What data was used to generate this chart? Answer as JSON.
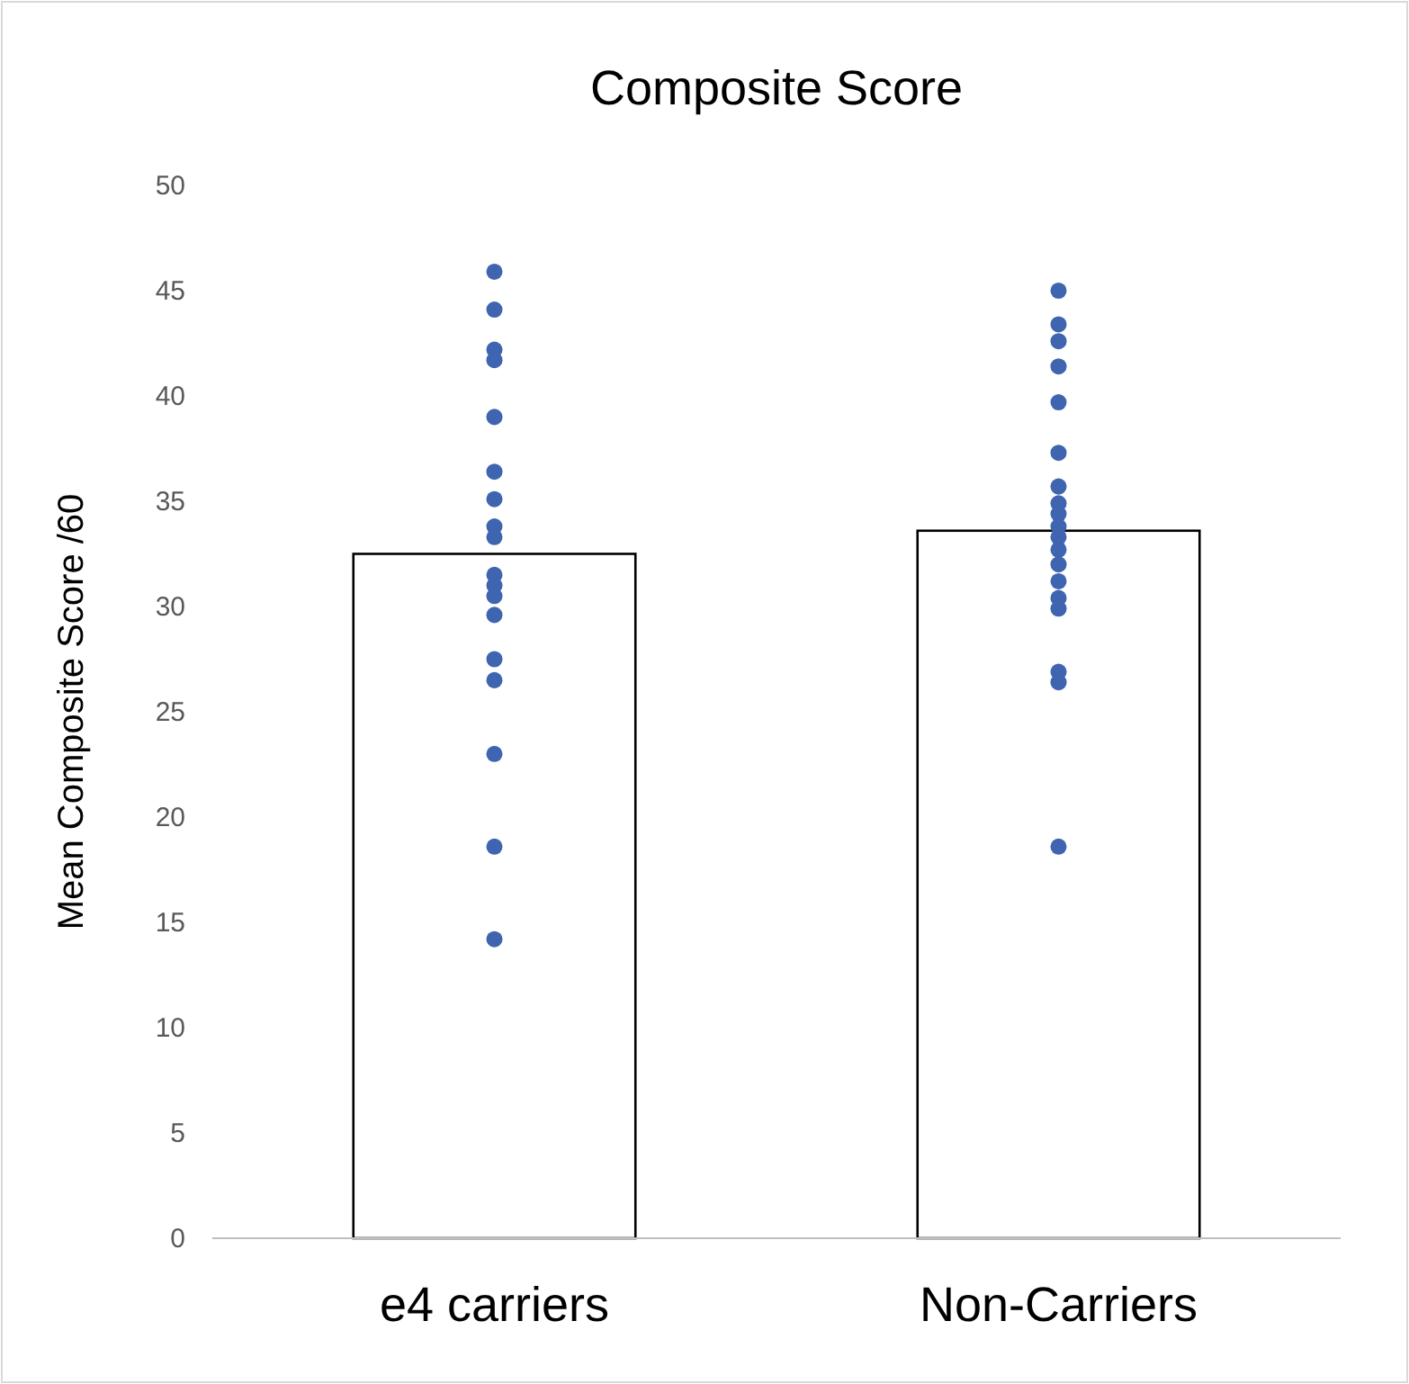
{
  "chart_data": {
    "type": "bar",
    "title": "Composite Score",
    "ylabel": "Mean Composite Score /60",
    "categories": [
      "e4 carriers",
      "Non-Carriers"
    ],
    "ylim": [
      0,
      50
    ],
    "yticks": [
      0,
      5,
      10,
      15,
      20,
      25,
      30,
      35,
      40,
      45,
      50
    ],
    "grid": false,
    "marker": "circle",
    "series": [
      {
        "color": "#ffffff",
        "values": [
          32.5,
          33.6
        ]
      },
      {
        "type": "scatter",
        "color": "#3f64b0",
        "x": [
          "e4 carriers",
          "e4 carriers",
          "e4 carriers",
          "e4 carriers",
          "e4 carriers",
          "e4 carriers",
          "e4 carriers",
          "e4 carriers",
          "e4 carriers",
          "e4 carriers",
          "e4 carriers",
          "e4 carriers",
          "e4 carriers",
          "e4 carriers",
          "e4 carriers",
          "e4 carriers",
          "e4 carriers",
          "e4 carriers"
        ],
        "values": [
          45.9,
          44.1,
          42.2,
          41.7,
          39.0,
          36.4,
          35.1,
          33.8,
          33.3,
          31.5,
          31.0,
          30.5,
          29.6,
          27.5,
          26.5,
          23.0,
          18.6,
          14.2
        ]
      },
      {
        "type": "scatter",
        "color": "#3f64b0",
        "x": [
          "Non-Carriers",
          "Non-Carriers",
          "Non-Carriers",
          "Non-Carriers",
          "Non-Carriers",
          "Non-Carriers",
          "Non-Carriers",
          "Non-Carriers",
          "Non-Carriers",
          "Non-Carriers",
          "Non-Carriers",
          "Non-Carriers",
          "Non-Carriers",
          "Non-Carriers",
          "Non-Carriers",
          "Non-Carriers",
          "Non-Carriers",
          "Non-Carriers",
          "Non-Carriers"
        ],
        "values": [
          45.0,
          43.4,
          42.6,
          41.4,
          39.7,
          37.3,
          35.7,
          34.9,
          34.4,
          33.8,
          33.3,
          32.7,
          32.0,
          31.2,
          30.4,
          29.9,
          26.9,
          26.4,
          18.6
        ]
      }
    ]
  }
}
